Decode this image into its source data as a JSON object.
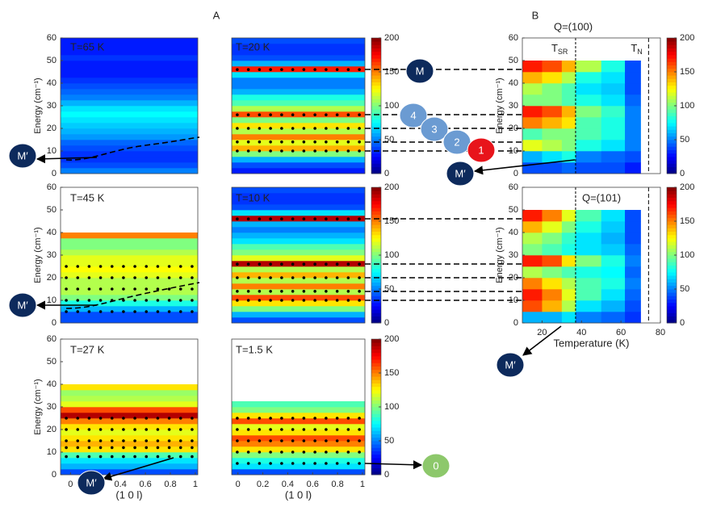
{
  "figure": {
    "labels": [
      "A",
      "B"
    ]
  },
  "annotations": [
    {
      "text": "M",
      "color": "#0d2a5c"
    },
    {
      "text": "4",
      "color": "#6b9bd2"
    },
    {
      "text": "3",
      "color": "#6b9bd2"
    },
    {
      "text": "2",
      "color": "#6b9bd2"
    },
    {
      "text": "1",
      "color": "#e8141b"
    },
    {
      "text": "M′",
      "color": "#0d2a5c"
    },
    {
      "text": "M′",
      "color": "#0d2a5c"
    },
    {
      "text": "M′",
      "color": "#0d2a5c"
    },
    {
      "text": "M′",
      "color": "#0d2a5c"
    },
    {
      "text": "M′",
      "color": "#0d2a5c"
    },
    {
      "text": "0",
      "color": "#8dc86b"
    }
  ],
  "chart_data": [
    {
      "type": "heatmap",
      "title": "T=65 K",
      "ylabel": "Energy (cm⁻¹)",
      "ylim": [
        0,
        60
      ],
      "yticks": [
        0,
        10,
        20,
        30,
        40,
        50,
        60
      ],
      "ybins": [
        0,
        2.5,
        5,
        7.5,
        10,
        12.5,
        15,
        17.5,
        20,
        22.5,
        25,
        27.5,
        30,
        32.5,
        35,
        37.5,
        40,
        42.5,
        45,
        47.5,
        50,
        52.5,
        55,
        57.5,
        60
      ],
      "values": [
        50,
        40,
        35,
        35,
        40,
        45,
        55,
        60,
        65,
        70,
        75,
        70,
        60,
        50,
        45,
        40,
        35,
        30,
        30,
        30,
        35,
        30,
        30,
        30
      ],
      "peaks": []
    },
    {
      "type": "heatmap",
      "title": "T=20 K",
      "ylim": [
        0,
        60
      ],
      "ybins": [
        0,
        2.5,
        5,
        7.5,
        10,
        12.5,
        15,
        17.5,
        20,
        22.5,
        25,
        27.5,
        30,
        32.5,
        35,
        37.5,
        40,
        42.5,
        45,
        47.5,
        50,
        52.5,
        55,
        57.5,
        60
      ],
      "values": [
        30,
        40,
        60,
        100,
        140,
        120,
        150,
        110,
        130,
        100,
        160,
        110,
        90,
        80,
        60,
        50,
        50,
        70,
        170,
        60,
        40,
        35,
        35,
        40
      ],
      "peaks": [
        10,
        14,
        20,
        26,
        46
      ],
      "clim": [
        0,
        200
      ],
      "cticks": [
        0,
        50,
        100,
        150,
        200
      ]
    },
    {
      "type": "heatmap",
      "title": "T=45 K",
      "ylabel": "Energy (cm⁻¹)",
      "ylim": [
        0,
        60
      ],
      "yticks": [
        0,
        10,
        20,
        30,
        40,
        50,
        60
      ],
      "ybins": [
        0,
        2.5,
        5,
        7.5,
        10,
        12.5,
        15,
        17.5,
        20,
        22.5,
        25,
        27.5,
        30,
        32.5,
        35,
        37.5,
        40,
        42.5,
        45,
        47.5,
        50,
        52.5,
        55,
        57.5,
        60
      ],
      "values": [
        40,
        40,
        60,
        80,
        100,
        110,
        110,
        110,
        120,
        125,
        120,
        120,
        110,
        100,
        100,
        150,
        null,
        null,
        null,
        null,
        null,
        null,
        null,
        null
      ],
      "peaks": [
        5,
        10,
        15,
        20,
        25
      ]
    },
    {
      "type": "heatmap",
      "title": "T=10 K",
      "ylim": [
        0,
        60
      ],
      "ybins": [
        0,
        2.5,
        5,
        7.5,
        10,
        12.5,
        15,
        17.5,
        20,
        22.5,
        25,
        27.5,
        30,
        32.5,
        35,
        37.5,
        40,
        42.5,
        45,
        47.5,
        50,
        52.5,
        55,
        57.5,
        60
      ],
      "values": [
        40,
        60,
        100,
        130,
        160,
        110,
        150,
        110,
        140,
        110,
        190,
        120,
        100,
        90,
        70,
        60,
        50,
        60,
        190,
        70,
        40,
        35,
        35,
        40
      ],
      "peaks": [
        10,
        14,
        20,
        26,
        46
      ],
      "clim": [
        0,
        200
      ],
      "cticks": [
        0,
        50,
        100,
        150,
        200
      ]
    },
    {
      "type": "heatmap",
      "title": "T=27 K",
      "ylabel": "Energy (cm⁻¹)",
      "xlabel": "(1 0 l)",
      "ylim": [
        0,
        60
      ],
      "yticks": [
        0,
        10,
        20,
        30,
        40,
        50,
        60
      ],
      "xlim": [
        -0.08,
        1.02
      ],
      "xticks": [
        0,
        0.4,
        0.6,
        0.8,
        1
      ],
      "ybins": [
        0,
        2.5,
        5,
        7.5,
        10,
        12.5,
        15,
        17.5,
        20,
        22.5,
        25,
        27.5,
        30,
        32.5,
        35,
        37.5,
        40,
        42.5,
        45,
        47.5,
        50,
        52.5,
        55,
        57.5,
        60
      ],
      "values": [
        40,
        60,
        70,
        90,
        130,
        140,
        130,
        120,
        130,
        150,
        190,
        160,
        120,
        110,
        105,
        130,
        null,
        null,
        null,
        null,
        null,
        null,
        null,
        null
      ],
      "peaks": [
        8,
        12,
        15,
        20,
        25
      ]
    },
    {
      "type": "heatmap",
      "title": "T=1.5 K",
      "xlabel": "(1 0 l)",
      "ylim": [
        0,
        60
      ],
      "xlim": [
        -0.05,
        1.02
      ],
      "xticks": [
        0,
        0.2,
        0.4,
        0.6,
        0.8,
        1
      ],
      "ybins": [
        0,
        2.5,
        5,
        7.5,
        10,
        12.5,
        15,
        17.5,
        20,
        22.5,
        25,
        27.5,
        30,
        32.5,
        35,
        37.5,
        40,
        42.5,
        45,
        47.5,
        50,
        52.5,
        55,
        57.5,
        60
      ],
      "values": [
        40,
        70,
        80,
        100,
        130,
        150,
        160,
        130,
        120,
        160,
        130,
        100,
        90,
        null,
        null,
        null,
        null,
        null,
        null,
        null,
        null,
        null,
        null,
        null
      ],
      "peaks": [
        5,
        10,
        15,
        20,
        25
      ],
      "clim": [
        0,
        200
      ],
      "cticks": [
        0,
        50,
        100,
        150,
        200
      ]
    },
    {
      "type": "heatmap2d",
      "title": "Q=(100)",
      "ylabel": "Energy (cm⁻¹)",
      "ylim": [
        0,
        60
      ],
      "yticks": [
        0,
        10,
        20,
        30,
        40,
        50,
        60
      ],
      "xlim": [
        10,
        80
      ],
      "xbins": [
        10,
        20,
        30,
        37,
        50,
        62,
        70
      ],
      "ybins": [
        0,
        5,
        10,
        15,
        20,
        25,
        30,
        35,
        40,
        45,
        50
      ],
      "values": [
        [
          40,
          40,
          45,
          40,
          40,
          30
        ],
        [
          60,
          70,
          80,
          50,
          45,
          40
        ],
        [
          120,
          110,
          100,
          80,
          70,
          50
        ],
        [
          90,
          100,
          100,
          90,
          80,
          50
        ],
        [
          150,
          140,
          130,
          90,
          80,
          50
        ],
        [
          170,
          160,
          140,
          100,
          85,
          50
        ],
        [
          100,
          100,
          90,
          80,
          70,
          45
        ],
        [
          110,
          100,
          90,
          70,
          65,
          40
        ],
        [
          140,
          130,
          110,
          80,
          70,
          40
        ],
        [
          170,
          160,
          140,
          110,
          80,
          40
        ]
      ],
      "vlines": [
        37,
        74
      ],
      "vline_labels": [
        {
          "base": "T",
          "sub": "SR"
        },
        {
          "base": "T",
          "sub": "N"
        }
      ],
      "clim": [
        0,
        200
      ],
      "cticks": [
        0,
        50,
        100,
        150,
        200
      ]
    },
    {
      "type": "heatmap2d",
      "title": "Q=(101)",
      "ylabel": "Energy (cm⁻¹)",
      "xlabel": "Temperature (K)",
      "ylim": [
        0,
        60
      ],
      "yticks": [
        0,
        10,
        20,
        30,
        40,
        50,
        60
      ],
      "xlim": [
        10,
        80
      ],
      "xticks": [
        20,
        40,
        60,
        80
      ],
      "xbins": [
        10,
        20,
        30,
        37,
        50,
        62,
        70
      ],
      "ybins": [
        0,
        5,
        10,
        15,
        20,
        25,
        30,
        35,
        40,
        45,
        50
      ],
      "values": [
        [
          60,
          60,
          70,
          50,
          45,
          35
        ],
        [
          160,
          140,
          110,
          70,
          60,
          40
        ],
        [
          170,
          150,
          120,
          90,
          70,
          45
        ],
        [
          150,
          130,
          110,
          90,
          80,
          50
        ],
        [
          110,
          100,
          90,
          80,
          75,
          45
        ],
        [
          170,
          160,
          130,
          100,
          80,
          50
        ],
        [
          100,
          90,
          80,
          70,
          65,
          45
        ],
        [
          110,
          100,
          85,
          70,
          60,
          40
        ],
        [
          140,
          120,
          100,
          80,
          65,
          40
        ],
        [
          170,
          150,
          120,
          90,
          70,
          40
        ]
      ],
      "vlines": [
        37,
        74
      ],
      "clim": [
        0,
        200
      ],
      "cticks": [
        0,
        50,
        100,
        150,
        200
      ]
    }
  ]
}
